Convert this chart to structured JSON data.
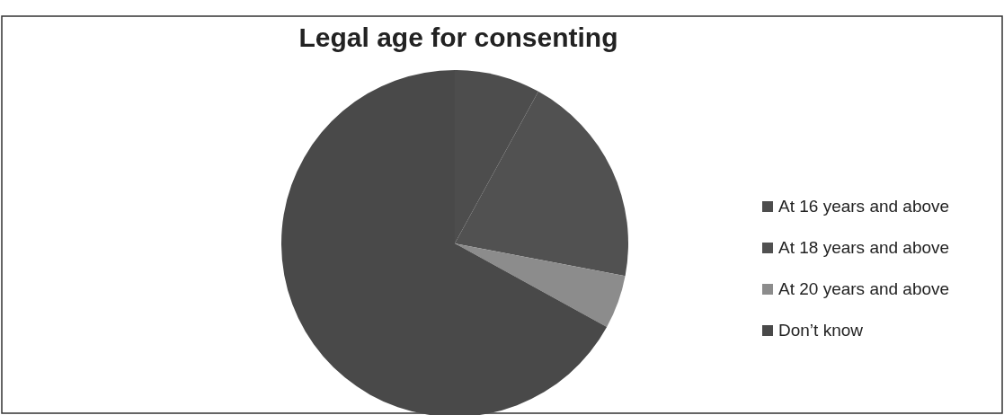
{
  "chart_data": {
    "type": "pie",
    "title": "Legal age for consenting",
    "categories": [
      "At 16 years and above",
      "At 18 years and above",
      "At 20 years and above",
      "Don’t know"
    ],
    "values": [
      8,
      20,
      5,
      67
    ],
    "colors": [
      "#4d4d4d",
      "#515151",
      "#8c8c8c",
      "#494949"
    ],
    "legend": "right"
  }
}
